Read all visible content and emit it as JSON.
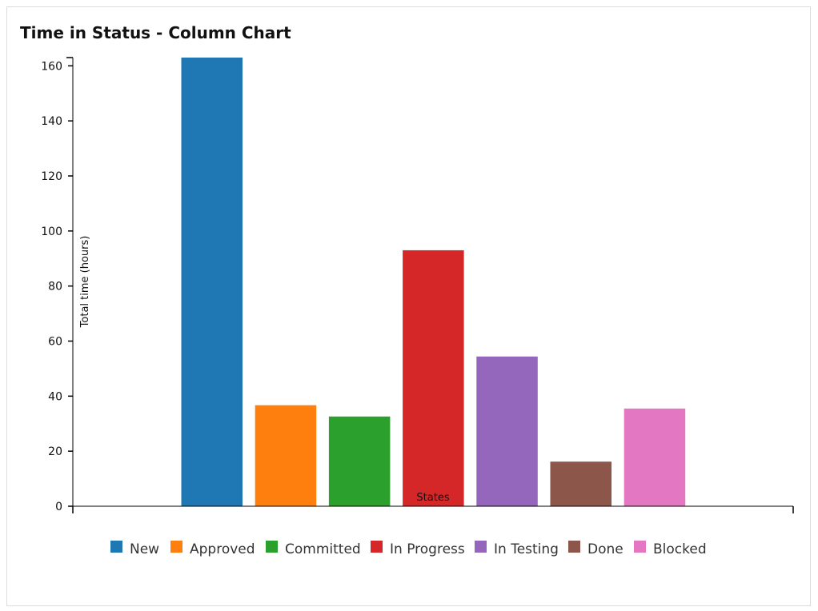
{
  "chart_data": {
    "type": "bar",
    "title": "Time in Status - Column Chart",
    "xlabel": "States",
    "ylabel": "Total time (hours)",
    "ylim": [
      0,
      163
    ],
    "yticks": [
      0,
      20,
      40,
      60,
      80,
      100,
      120,
      140,
      160
    ],
    "categories": [
      "New",
      "Approved",
      "Committed",
      "In Progress",
      "In Testing",
      "Done",
      "Blocked"
    ],
    "values": [
      163,
      36.7,
      32.6,
      93,
      54.4,
      16.2,
      35.5
    ],
    "colors": [
      "#1f77b4",
      "#ff7f0e",
      "#2ca02c",
      "#d62728",
      "#9467bd",
      "#8c564b",
      "#e377c2"
    ],
    "legend_position": "bottom",
    "grid": false
  }
}
